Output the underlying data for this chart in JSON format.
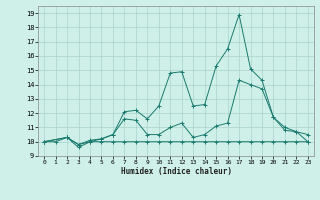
{
  "title": "",
  "xlabel": "Humidex (Indice chaleur)",
  "bg_color": "#cff0e8",
  "grid_color": "#aad4cc",
  "line_color": "#1a7a6e",
  "xlim": [
    -0.5,
    23.5
  ],
  "ylim": [
    9,
    19.5
  ],
  "xticks": [
    0,
    1,
    2,
    3,
    4,
    5,
    6,
    7,
    8,
    9,
    10,
    11,
    12,
    13,
    14,
    15,
    16,
    17,
    18,
    19,
    20,
    21,
    22,
    23
  ],
  "yticks": [
    9,
    10,
    11,
    12,
    13,
    14,
    15,
    16,
    17,
    18,
    19
  ],
  "series": {
    "line1": {
      "x": [
        0,
        1,
        2,
        3,
        4,
        5,
        6,
        7,
        8,
        9,
        10,
        11,
        12,
        13,
        14,
        15,
        16,
        17,
        18,
        19,
        20,
        21,
        22,
        23
      ],
      "y": [
        10,
        10,
        10.3,
        9.8,
        10.0,
        10.0,
        10.0,
        10.0,
        10.0,
        10.0,
        10.0,
        10.0,
        10.0,
        10.0,
        10.0,
        10.0,
        10.0,
        10.0,
        10.0,
        10.0,
        10.0,
        10.0,
        10.0,
        10.0
      ]
    },
    "line2": {
      "x": [
        0,
        2,
        3,
        4,
        5,
        6,
        7,
        8,
        9,
        10,
        11,
        12,
        13,
        14,
        15,
        16,
        17,
        18,
        19,
        20,
        21,
        22,
        23
      ],
      "y": [
        10,
        10.3,
        9.6,
        10.0,
        10.2,
        10.5,
        11.6,
        11.5,
        10.5,
        10.5,
        11.0,
        11.3,
        10.3,
        10.5,
        11.1,
        11.3,
        14.3,
        14.0,
        13.7,
        11.7,
        11.0,
        10.7,
        10.0
      ]
    },
    "line3": {
      "x": [
        0,
        2,
        3,
        4,
        5,
        6,
        7,
        8,
        9,
        10,
        11,
        12,
        13,
        14,
        15,
        16,
        17,
        18,
        19,
        20,
        21,
        22,
        23
      ],
      "y": [
        10,
        10.3,
        9.8,
        10.1,
        10.2,
        10.5,
        12.1,
        12.2,
        11.6,
        12.5,
        14.8,
        14.9,
        12.5,
        12.6,
        15.3,
        16.5,
        18.9,
        15.1,
        14.3,
        11.7,
        10.8,
        10.7,
        10.5
      ]
    }
  }
}
